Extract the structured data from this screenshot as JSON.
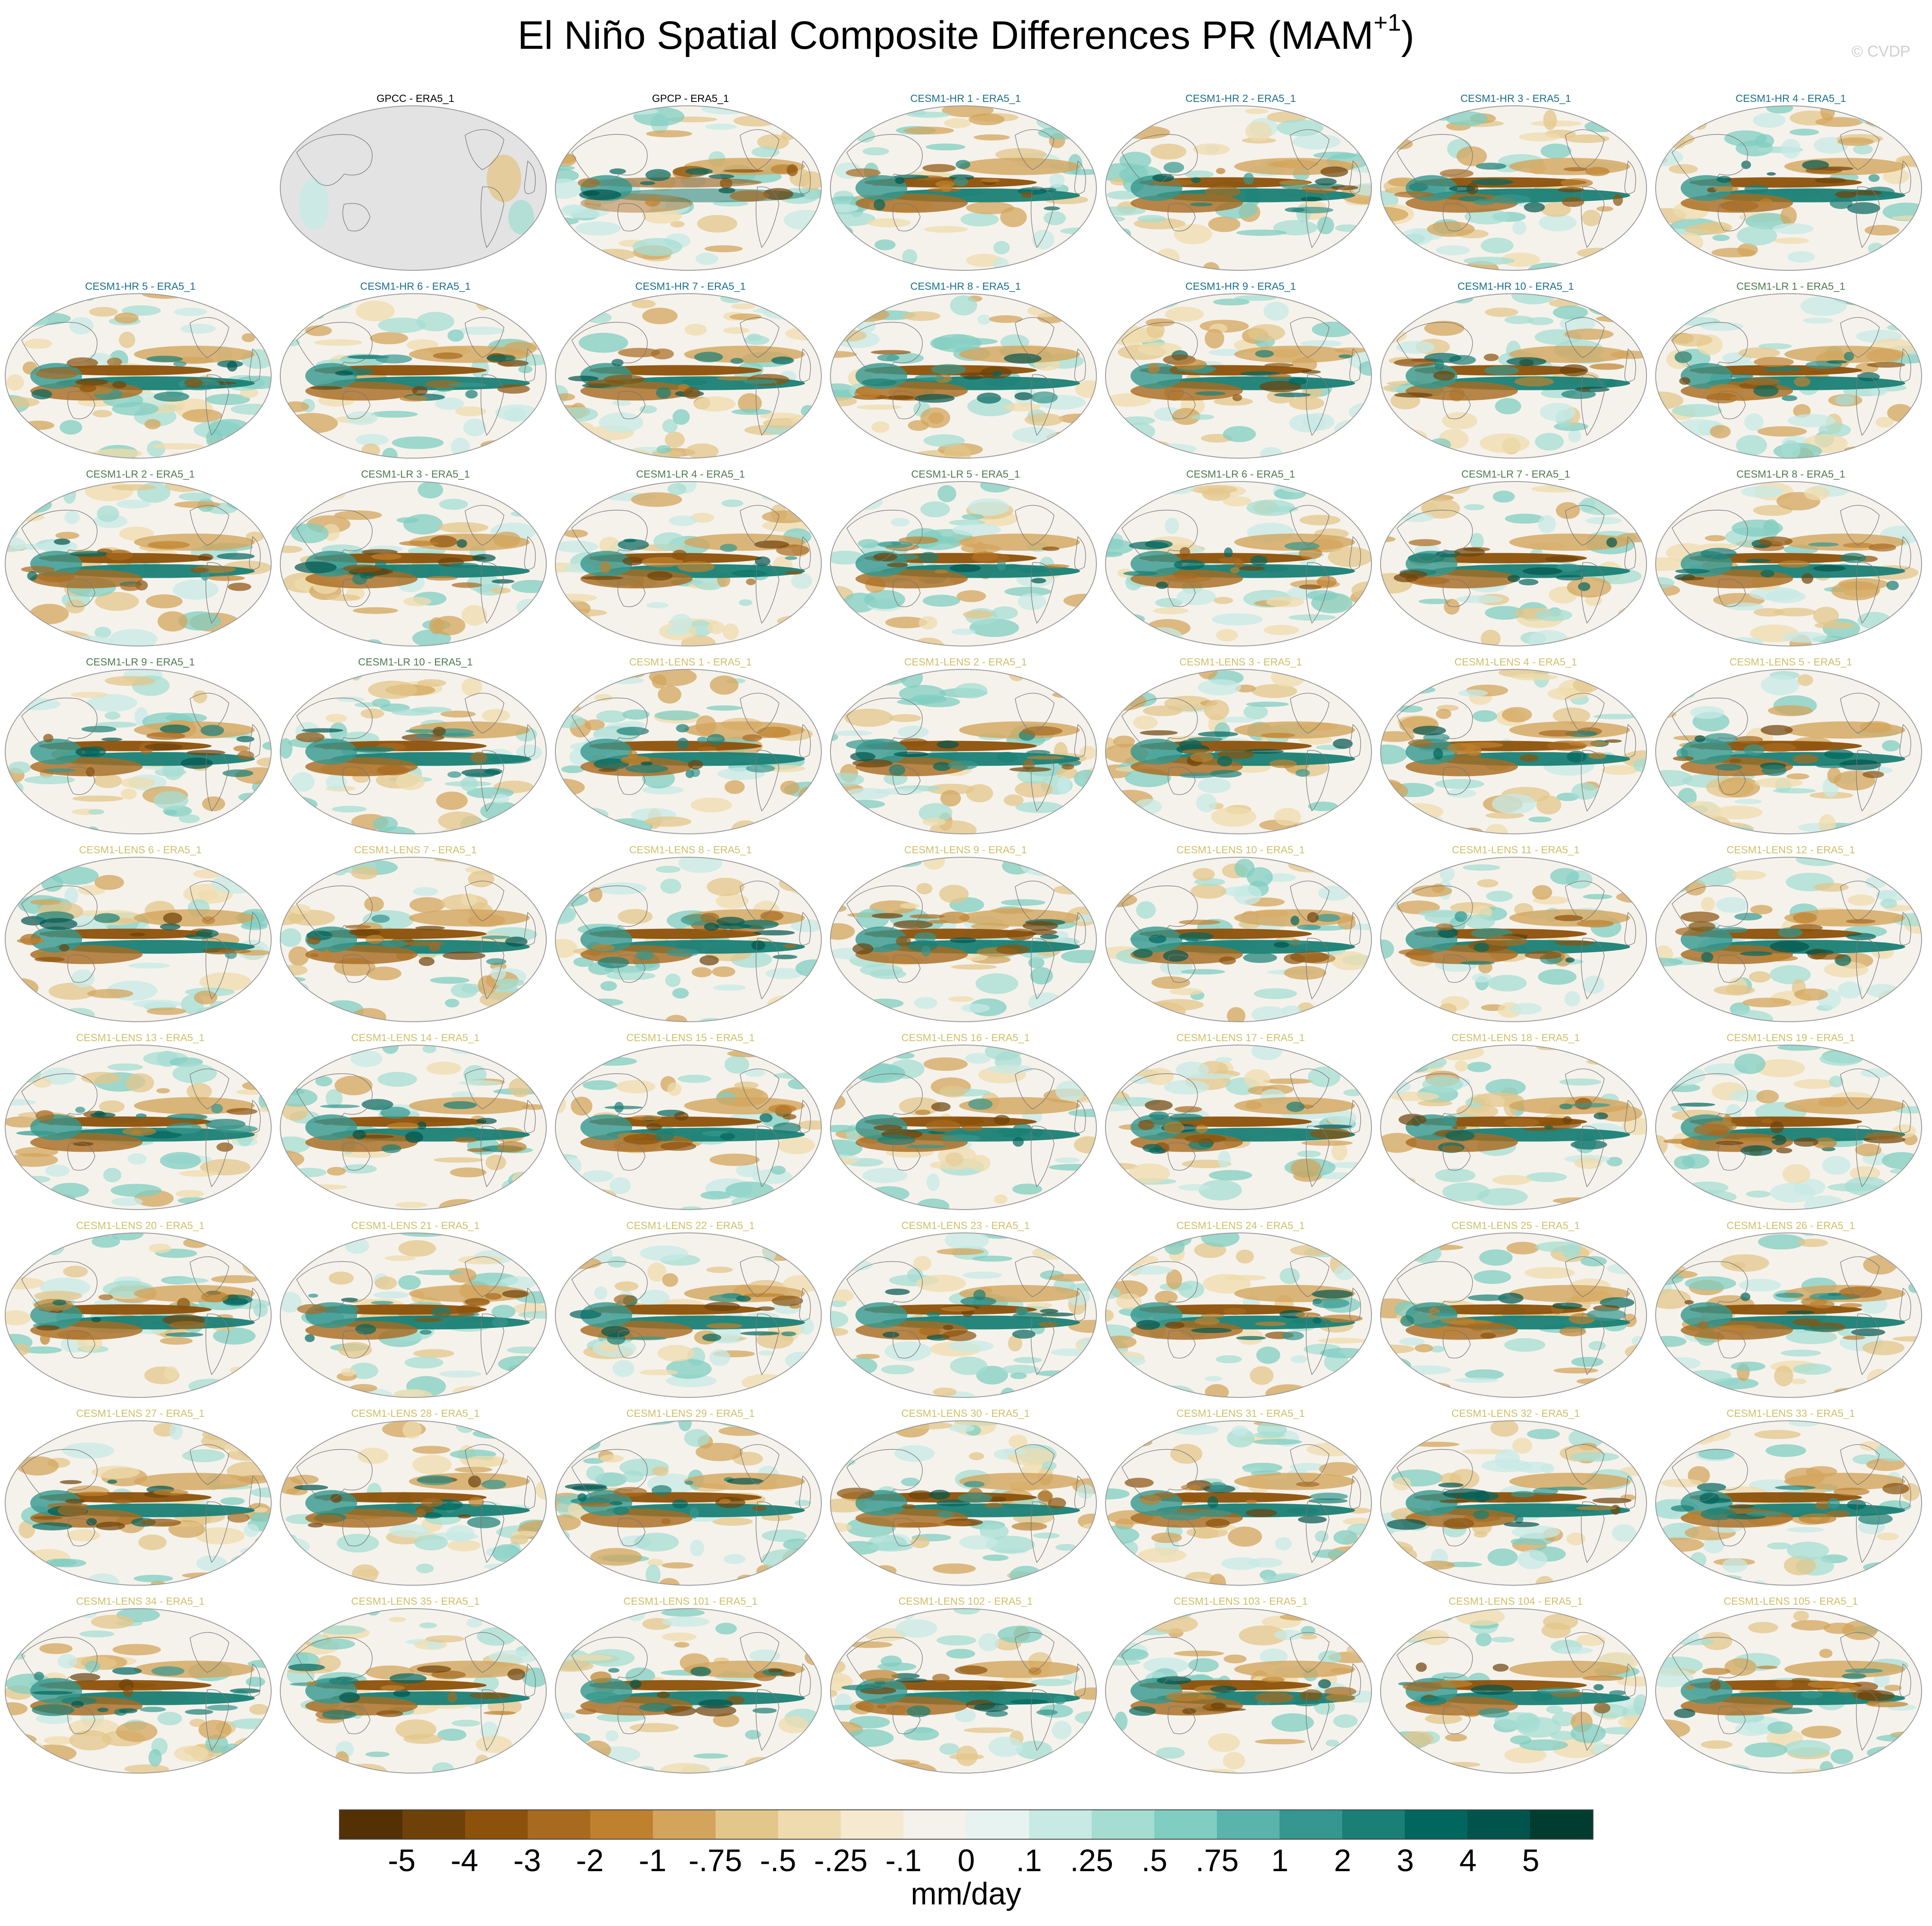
{
  "figure": {
    "title": "El Niño Spatial Composite Differences PR (MAM",
    "title_superscript": "+1",
    "title_close": ")",
    "copyright": "© CVDP"
  },
  "group_colors": {
    "obs": "#000000",
    "CESM1-HR": "#1b6e8a",
    "CESM1-LR": "#4f7a4f",
    "CESM1-LENS": "#cfc06a"
  },
  "panels": [
    {
      "label": "GPCC - ERA5_1",
      "group": "obs",
      "land_masked": true
    },
    {
      "label": "GPCP - ERA5_1",
      "group": "obs"
    },
    {
      "label": "CESM1-HR 1 - ERA5_1",
      "group": "CESM1-HR"
    },
    {
      "label": "CESM1-HR 2 - ERA5_1",
      "group": "CESM1-HR"
    },
    {
      "label": "CESM1-HR 3 - ERA5_1",
      "group": "CESM1-HR"
    },
    {
      "label": "CESM1-HR 4 - ERA5_1",
      "group": "CESM1-HR"
    },
    {
      "label": "CESM1-HR 5 - ERA5_1",
      "group": "CESM1-HR"
    },
    {
      "label": "CESM1-HR 6 - ERA5_1",
      "group": "CESM1-HR"
    },
    {
      "label": "CESM1-HR 7 - ERA5_1",
      "group": "CESM1-HR"
    },
    {
      "label": "CESM1-HR 8 - ERA5_1",
      "group": "CESM1-HR"
    },
    {
      "label": "CESM1-HR 9 - ERA5_1",
      "group": "CESM1-HR"
    },
    {
      "label": "CESM1-HR 10 - ERA5_1",
      "group": "CESM1-HR"
    },
    {
      "label": "CESM1-LR 1 - ERA5_1",
      "group": "CESM1-LR"
    },
    {
      "label": "CESM1-LR 2 - ERA5_1",
      "group": "CESM1-LR"
    },
    {
      "label": "CESM1-LR 3 - ERA5_1",
      "group": "CESM1-LR"
    },
    {
      "label": "CESM1-LR 4 - ERA5_1",
      "group": "CESM1-LR"
    },
    {
      "label": "CESM1-LR 5 - ERA5_1",
      "group": "CESM1-LR"
    },
    {
      "label": "CESM1-LR 6 - ERA5_1",
      "group": "CESM1-LR"
    },
    {
      "label": "CESM1-LR 7 - ERA5_1",
      "group": "CESM1-LR"
    },
    {
      "label": "CESM1-LR 8 - ERA5_1",
      "group": "CESM1-LR"
    },
    {
      "label": "CESM1-LR 9 - ERA5_1",
      "group": "CESM1-LR"
    },
    {
      "label": "CESM1-LR 10 - ERA5_1",
      "group": "CESM1-LR"
    },
    {
      "label": "CESM1-LENS 1 - ERA5_1",
      "group": "CESM1-LENS"
    },
    {
      "label": "CESM1-LENS 2 - ERA5_1",
      "group": "CESM1-LENS"
    },
    {
      "label": "CESM1-LENS 3 - ERA5_1",
      "group": "CESM1-LENS"
    },
    {
      "label": "CESM1-LENS 4 - ERA5_1",
      "group": "CESM1-LENS"
    },
    {
      "label": "CESM1-LENS 5 - ERA5_1",
      "group": "CESM1-LENS"
    },
    {
      "label": "CESM1-LENS 6 - ERA5_1",
      "group": "CESM1-LENS"
    },
    {
      "label": "CESM1-LENS 7 - ERA5_1",
      "group": "CESM1-LENS"
    },
    {
      "label": "CESM1-LENS 8 - ERA5_1",
      "group": "CESM1-LENS"
    },
    {
      "label": "CESM1-LENS 9 - ERA5_1",
      "group": "CESM1-LENS"
    },
    {
      "label": "CESM1-LENS 10 - ERA5_1",
      "group": "CESM1-LENS"
    },
    {
      "label": "CESM1-LENS 11 - ERA5_1",
      "group": "CESM1-LENS"
    },
    {
      "label": "CESM1-LENS 12 - ERA5_1",
      "group": "CESM1-LENS"
    },
    {
      "label": "CESM1-LENS 13 - ERA5_1",
      "group": "CESM1-LENS"
    },
    {
      "label": "CESM1-LENS 14 - ERA5_1",
      "group": "CESM1-LENS"
    },
    {
      "label": "CESM1-LENS 15 - ERA5_1",
      "group": "CESM1-LENS"
    },
    {
      "label": "CESM1-LENS 16 - ERA5_1",
      "group": "CESM1-LENS"
    },
    {
      "label": "CESM1-LENS 17 - ERA5_1",
      "group": "CESM1-LENS"
    },
    {
      "label": "CESM1-LENS 18 - ERA5_1",
      "group": "CESM1-LENS"
    },
    {
      "label": "CESM1-LENS 19 - ERA5_1",
      "group": "CESM1-LENS"
    },
    {
      "label": "CESM1-LENS 20 - ERA5_1",
      "group": "CESM1-LENS"
    },
    {
      "label": "CESM1-LENS 21 - ERA5_1",
      "group": "CESM1-LENS"
    },
    {
      "label": "CESM1-LENS 22 - ERA5_1",
      "group": "CESM1-LENS"
    },
    {
      "label": "CESM1-LENS 23 - ERA5_1",
      "group": "CESM1-LENS"
    },
    {
      "label": "CESM1-LENS 24 - ERA5_1",
      "group": "CESM1-LENS"
    },
    {
      "label": "CESM1-LENS 25 - ERA5_1",
      "group": "CESM1-LENS"
    },
    {
      "label": "CESM1-LENS 26 - ERA5_1",
      "group": "CESM1-LENS"
    },
    {
      "label": "CESM1-LENS 27 - ERA5_1",
      "group": "CESM1-LENS"
    },
    {
      "label": "CESM1-LENS 28 - ERA5_1",
      "group": "CESM1-LENS"
    },
    {
      "label": "CESM1-LENS 29 - ERA5_1",
      "group": "CESM1-LENS"
    },
    {
      "label": "CESM1-LENS 30 - ERA5_1",
      "group": "CESM1-LENS"
    },
    {
      "label": "CESM1-LENS 31 - ERA5_1",
      "group": "CESM1-LENS"
    },
    {
      "label": "CESM1-LENS 32 - ERA5_1",
      "group": "CESM1-LENS"
    },
    {
      "label": "CESM1-LENS 33 - ERA5_1",
      "group": "CESM1-LENS"
    },
    {
      "label": "CESM1-LENS 34 - ERA5_1",
      "group": "CESM1-LENS"
    },
    {
      "label": "CESM1-LENS 35 - ERA5_1",
      "group": "CESM1-LENS"
    },
    {
      "label": "CESM1-LENS 101 - ERA5_1",
      "group": "CESM1-LENS"
    },
    {
      "label": "CESM1-LENS 102 - ERA5_1",
      "group": "CESM1-LENS"
    },
    {
      "label": "CESM1-LENS 103 - ERA5_1",
      "group": "CESM1-LENS"
    },
    {
      "label": "CESM1-LENS 104 - ERA5_1",
      "group": "CESM1-LENS"
    },
    {
      "label": "CESM1-LENS 105 - ERA5_1",
      "group": "CESM1-LENS"
    }
  ],
  "colorbar": {
    "colors": [
      "#543005",
      "#6e4109",
      "#8c510a",
      "#a86a1f",
      "#bf812d",
      "#d3a55c",
      "#e3c68a",
      "#efdcae",
      "#f5ead0",
      "#f5f2ec",
      "#e7f3f1",
      "#c7eae5",
      "#a6ddd3",
      "#80cdc1",
      "#5ab4ac",
      "#35978f",
      "#1a7f75",
      "#01665e",
      "#01544b",
      "#003c30"
    ],
    "labels": [
      "-5",
      "-4",
      "-3",
      "-2",
      "-1",
      "-.75",
      "-.5",
      "-.25",
      "-.1",
      "0",
      ".1",
      ".25",
      ".5",
      ".75",
      "1",
      "2",
      "3",
      "4",
      "5"
    ],
    "units": "mm/day"
  }
}
